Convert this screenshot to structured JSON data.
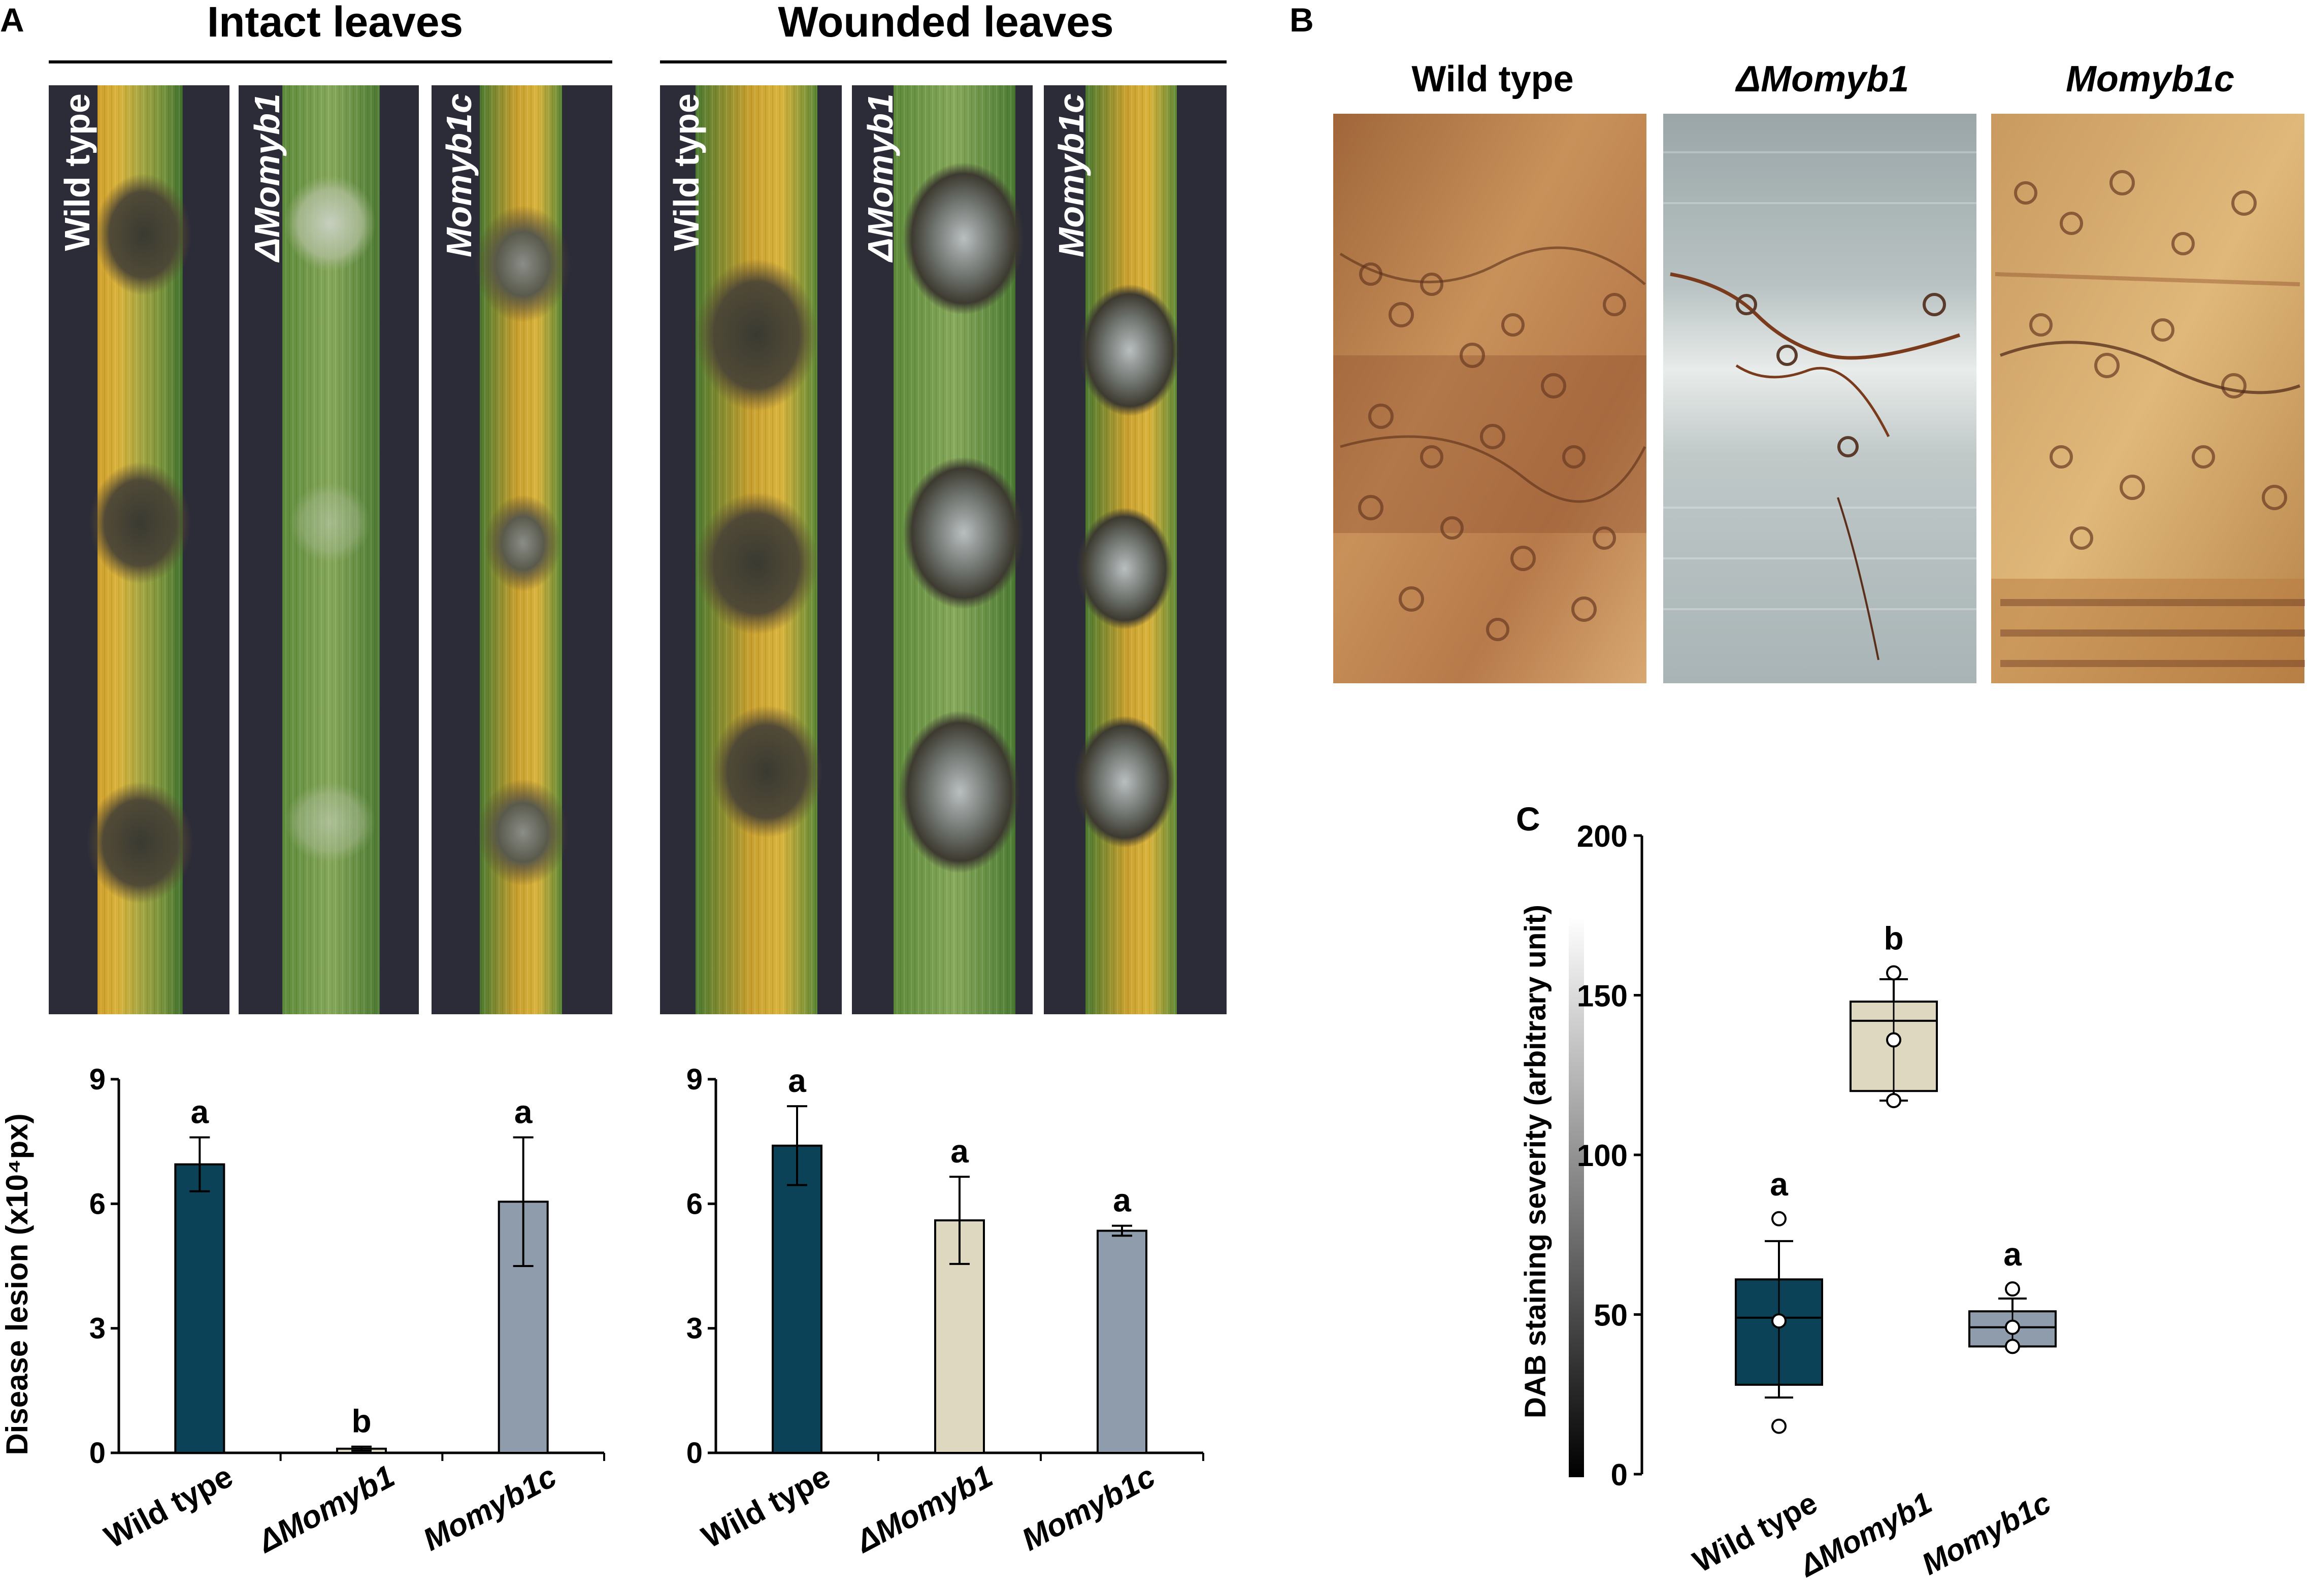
{
  "panel_labels": {
    "A": "A",
    "B": "B",
    "C": "C"
  },
  "panel_a": {
    "intact_title": "Intact leaves",
    "wounded_title": "Wounded leaves",
    "leaf_labels": [
      "Wild type",
      "ΔMomyb1",
      "Momyb1c",
      "Wild type",
      "ΔMomyb1",
      "Momyb1c"
    ]
  },
  "panel_b": {
    "column_labels": [
      "Wild type",
      "ΔMomyb1",
      "Momyb1c"
    ]
  },
  "colors": {
    "wild_type": "#0b4258",
    "delta_momyb1": "#ded8c0",
    "momyb1c": "#8e9cab",
    "leaf_background": "#2c2c38"
  },
  "chart_data": [
    {
      "type": "bar",
      "panel": "A-intact",
      "ylabel": "Disease lesion (x10⁴px)",
      "categories": [
        "Wild type",
        "ΔMomyb1",
        "Momyb1c"
      ],
      "values": [
        6.95,
        0.1,
        6.05
      ],
      "errors": [
        0.65,
        0.05,
        1.55
      ],
      "significance": [
        "a",
        "b",
        "a"
      ],
      "ylim": [
        0,
        9
      ],
      "yticks": [
        "0",
        "3",
        "6",
        "9"
      ]
    },
    {
      "type": "bar",
      "panel": "A-wounded",
      "ylabel": "",
      "categories": [
        "Wild type",
        "ΔMomyb1",
        "Momyb1c"
      ],
      "values": [
        7.4,
        5.6,
        5.35
      ],
      "errors": [
        0.95,
        1.05,
        0.12
      ],
      "significance": [
        "a",
        "a",
        "a"
      ],
      "ylim": [
        0,
        9
      ],
      "yticks": [
        "0",
        "3",
        "6",
        "9"
      ]
    },
    {
      "type": "box",
      "panel": "C",
      "ylabel": "DAB staining severity (arbitrary unit)",
      "categories": [
        "Wild type",
        "ΔMomyb1",
        "Momyb1c"
      ],
      "boxes": [
        {
          "whisker_low": 24,
          "q1": 28,
          "median": 49,
          "q3": 61,
          "whisker_high": 73,
          "mean": 48,
          "points": [
            15,
            48,
            80
          ]
        },
        {
          "whisker_low": 117,
          "q1": 120,
          "median": 142,
          "q3": 148,
          "whisker_high": 155,
          "mean": 136,
          "points": [
            117,
            136,
            157
          ]
        },
        {
          "whisker_low": 40,
          "q1": 40,
          "median": 46,
          "q3": 51,
          "whisker_high": 55,
          "mean": 46,
          "points": [
            40,
            46,
            58
          ]
        }
      ],
      "significance": [
        "a",
        "b",
        "a"
      ],
      "ylim": [
        0,
        200
      ],
      "yticks": [
        "0",
        "50",
        "100",
        "150",
        "200"
      ]
    }
  ]
}
